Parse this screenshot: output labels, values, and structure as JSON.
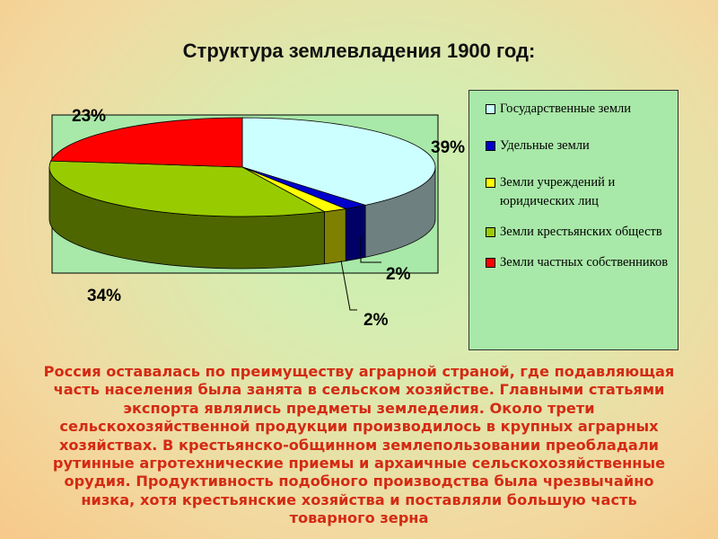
{
  "title": "Структура землевладения 1900 год:",
  "chart_data": {
    "type": "pie",
    "title": "Структура землевладения 1900 год:",
    "slices": [
      {
        "name": "Государственные земли",
        "value": 39,
        "label": "39%",
        "color": "#ccffff"
      },
      {
        "name": "Удельные земли",
        "value": 2,
        "label": "",
        "color": "#0000cc"
      },
      {
        "name": "Земли учреждений и юридических лиц",
        "value": 2,
        "label": "2%",
        "color": "#ffff00"
      },
      {
        "name": "Земли крестьянских обществ",
        "value": 34,
        "label": "34%",
        "color": "#99cc00"
      },
      {
        "name": "Земли частных собственников",
        "value": 23,
        "label": "23%",
        "color": "#ff0000"
      }
    ],
    "extra_labels": [
      "2%"
    ],
    "legend_position": "right"
  },
  "body_text": "Россия оставалась по преимуществу аграрной страной, где подавляющая часть населения была занята в сельском хозяйстве. Главными статьями экспорта являлись предметы земледелия. Около трети сельскохозяйственной продукции производилось в крупных аграрных хозяйствах. В крестьянско-общинном землепользовании преобладали рутинные агротехнические приемы и архаичные сельскохозяйственные орудия. Продуктивность подобного производства была чрезвычайно низка, хотя крестьянские хозяйства и поставляли большую часть товарного зерна"
}
